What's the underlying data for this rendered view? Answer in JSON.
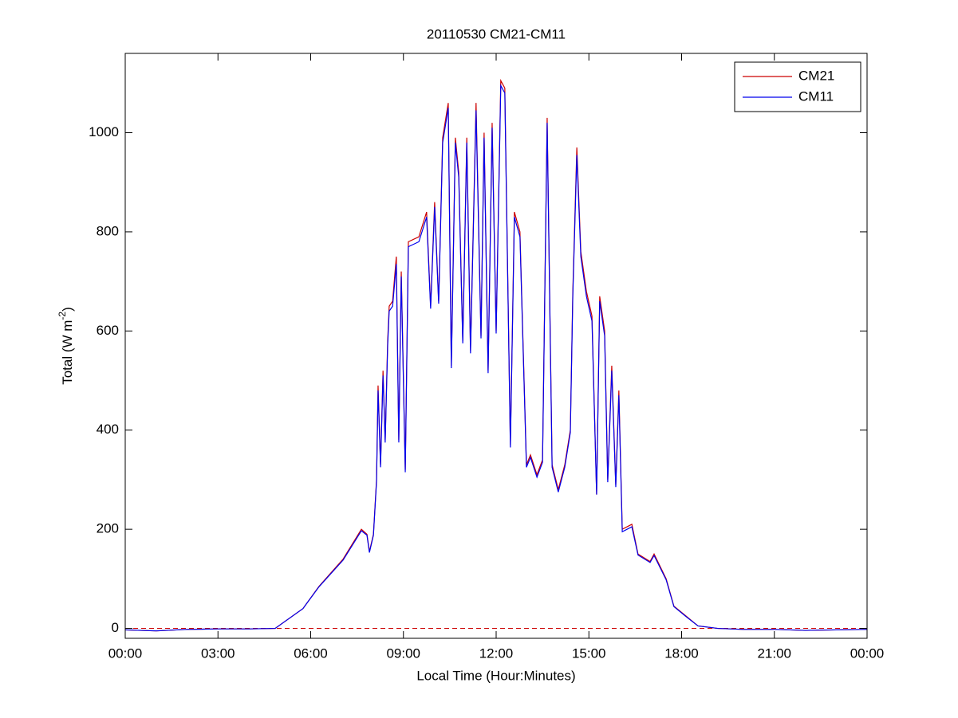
{
  "chart_data": {
    "type": "line",
    "title": "20110530 CM21-CM11",
    "xlabel": "Local Time (Hour:Minutes)",
    "ylabel": "Total (W m",
    "ylabel_sup": "-2",
    "ylabel_end": ")",
    "x": [
      0,
      1,
      2,
      3,
      4,
      4.85,
      5.75,
      6.27,
      7.05,
      7.64,
      7.82,
      7.9,
      8.03,
      8.13,
      8.18,
      8.26,
      8.34,
      8.41,
      8.49,
      8.54,
      8.65,
      8.77,
      8.85,
      8.93,
      9.06,
      9.16,
      9.5,
      9.75,
      9.88,
      10.01,
      10.14,
      10.27,
      10.45,
      10.55,
      10.68,
      10.79,
      10.92,
      11.05,
      11.17,
      11.35,
      11.51,
      11.61,
      11.74,
      11.87,
      12.0,
      12.15,
      12.28,
      12.46,
      12.59,
      12.77,
      12.98,
      13.11,
      13.32,
      13.5,
      13.65,
      13.81,
      14.01,
      14.22,
      14.4,
      14.48,
      14.61,
      14.74,
      14.92,
      15.1,
      15.25,
      15.35,
      15.51,
      15.61,
      15.74,
      15.87,
      15.97,
      16.08,
      16.39,
      16.59,
      16.98,
      17.11,
      17.5,
      17.75,
      18.14,
      18.53,
      19.17,
      20,
      21,
      22,
      23,
      24
    ],
    "series": [
      {
        "name": "CM21",
        "color": "#cc0000",
        "values": [
          -3,
          -5,
          -2,
          -1,
          -1,
          0,
          40,
          85,
          140,
          200,
          190,
          155,
          190,
          300,
          490,
          330,
          520,
          380,
          580,
          650,
          660,
          750,
          380,
          720,
          320,
          780,
          790,
          840,
          650,
          860,
          660,
          990,
          1060,
          530,
          990,
          920,
          580,
          990,
          560,
          1060,
          590,
          1000,
          520,
          1020,
          600,
          1105,
          1090,
          370,
          840,
          800,
          330,
          350,
          310,
          340,
          1030,
          330,
          280,
          330,
          400,
          680,
          970,
          760,
          680,
          630,
          270,
          670,
          600,
          300,
          530,
          290,
          480,
          200,
          210,
          150,
          135,
          150,
          100,
          45,
          25,
          5,
          0,
          -2,
          -2,
          -4,
          -3,
          -2
        ]
      },
      {
        "name": "CM11",
        "color": "#0000ee",
        "values": [
          -3,
          -5,
          -2,
          -1,
          -1,
          0,
          40,
          84,
          138,
          197,
          188,
          153,
          188,
          296,
          480,
          325,
          510,
          375,
          570,
          640,
          650,
          735,
          375,
          710,
          315,
          770,
          780,
          830,
          645,
          850,
          655,
          980,
          1050,
          525,
          980,
          910,
          575,
          980,
          555,
          1045,
          585,
          990,
          515,
          1010,
          595,
          1095,
          1080,
          365,
          830,
          790,
          325,
          345,
          305,
          335,
          1020,
          325,
          275,
          325,
          395,
          670,
          955,
          750,
          670,
          620,
          270,
          660,
          590,
          295,
          520,
          285,
          470,
          195,
          205,
          148,
          133,
          147,
          98,
          44,
          24,
          5,
          0,
          -2,
          -2,
          -4,
          -3,
          -2
        ]
      }
    ],
    "reference_line": {
      "value": 0,
      "color": "#cc0000",
      "style": "dashed"
    },
    "xlim": [
      0,
      24
    ],
    "xticks": [
      {
        "value": 0,
        "label": "00:00"
      },
      {
        "value": 3,
        "label": "03:00"
      },
      {
        "value": 6,
        "label": "06:00"
      },
      {
        "value": 9,
        "label": "09:00"
      },
      {
        "value": 12,
        "label": "12:00"
      },
      {
        "value": 15,
        "label": "15:00"
      },
      {
        "value": 18,
        "label": "18:00"
      },
      {
        "value": 21,
        "label": "21:00"
      },
      {
        "value": 24,
        "label": "00:00"
      }
    ],
    "ylim": [
      -20,
      1160
    ],
    "yticks": [
      0,
      200,
      400,
      600,
      800,
      1000
    ],
    "legend": "upper right",
    "grid": false
  }
}
